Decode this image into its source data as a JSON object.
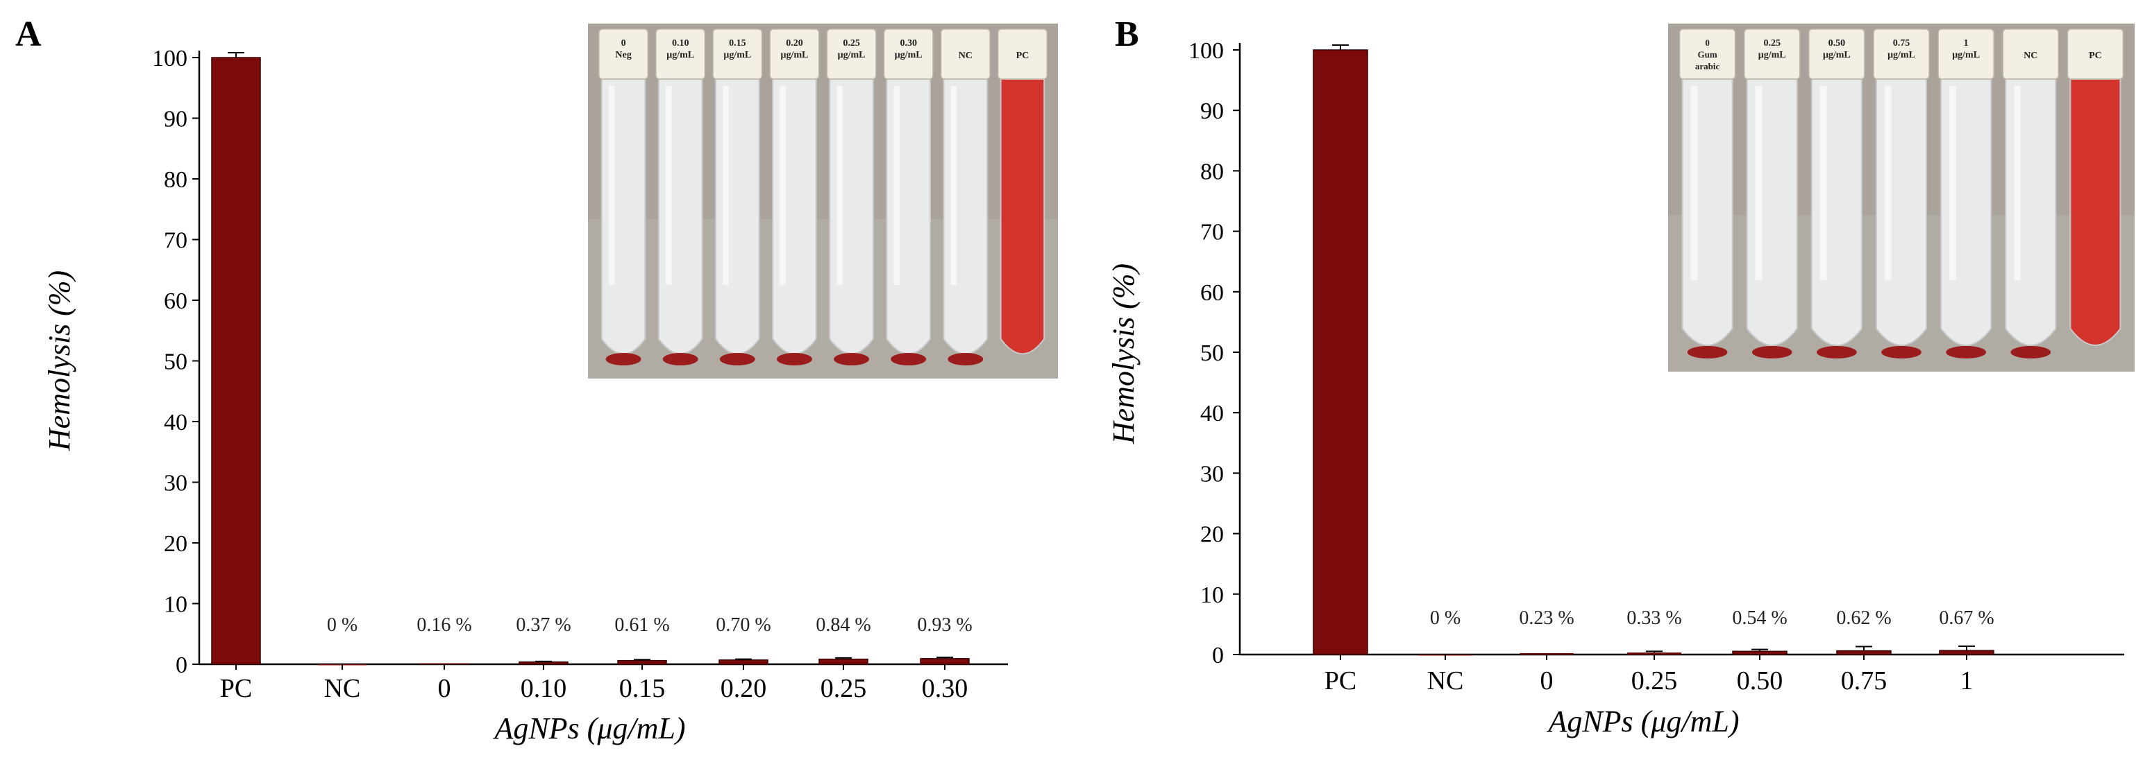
{
  "chart_data": [
    {
      "panel": "A",
      "type": "bar",
      "xlabel": "AgNPs (μg/mL)",
      "ylabel": "Hemolysis (%)",
      "ylim": [
        0,
        100
      ],
      "yticks": [
        0,
        10,
        20,
        30,
        40,
        50,
        60,
        70,
        80,
        90,
        100
      ],
      "categories": [
        "PC",
        "NC",
        "0",
        "0.10",
        "0.15",
        "0.20",
        "0.25",
        "0.30"
      ],
      "values": [
        100,
        0,
        0.16,
        0.37,
        0.61,
        0.7,
        0.84,
        0.93
      ],
      "errors": [
        0.8,
        0,
        0,
        0.1,
        0.15,
        0.15,
        0.2,
        0.2
      ],
      "data_labels": [
        "",
        "0 %",
        "0.16 %",
        "0.37 %",
        "0.61 %",
        "0.70 %",
        "0.84 %",
        "0.93 %"
      ],
      "bar_color": "#7b0a0a",
      "grid": false,
      "inset": {
        "description_free": true,
        "tube_labels": [
          [
            "0",
            "Neg"
          ],
          [
            "0.10",
            "μg/mL"
          ],
          [
            "0.15",
            "μg/mL"
          ],
          [
            "0.20",
            "μg/mL"
          ],
          [
            "0.25",
            "μg/mL"
          ],
          [
            "0.30",
            "μg/mL"
          ],
          [
            "NC"
          ],
          [
            "PC"
          ]
        ],
        "pellet": [
          true,
          true,
          true,
          true,
          true,
          true,
          true,
          false
        ],
        "red_fill": [
          false,
          false,
          false,
          false,
          false,
          false,
          false,
          true
        ]
      }
    },
    {
      "panel": "B",
      "type": "bar",
      "xlabel": "AgNPs (μg/mL)",
      "ylabel": "Hemolysis (%)",
      "ylim": [
        0,
        100
      ],
      "yticks": [
        0,
        10,
        20,
        30,
        40,
        50,
        60,
        70,
        80,
        90,
        100
      ],
      "categories": [
        "PC",
        "NC",
        "0",
        "0.25",
        "0.50",
        "0.75",
        "1"
      ],
      "values": [
        100,
        0,
        0.23,
        0.33,
        0.54,
        0.62,
        0.67
      ],
      "errors": [
        0.8,
        0,
        0,
        0.2,
        0.3,
        0.7,
        0.7
      ],
      "data_labels": [
        "",
        "0 %",
        "0.23 %",
        "0.33 %",
        "0.54 %",
        "0.62 %",
        "0.67 %"
      ],
      "bar_color": "#7b0a0a",
      "grid": false,
      "inset": {
        "tube_labels": [
          [
            "0",
            "Gum",
            "arabic"
          ],
          [
            "0.25",
            "μg/mL"
          ],
          [
            "0.50",
            "μg/mL"
          ],
          [
            "0.75",
            "μg/mL"
          ],
          [
            "1",
            "μg/mL"
          ],
          [
            "NC"
          ],
          [
            "PC"
          ]
        ],
        "pellet": [
          true,
          true,
          true,
          true,
          true,
          true,
          false
        ],
        "red_fill": [
          false,
          false,
          false,
          false,
          false,
          false,
          true
        ]
      }
    }
  ],
  "panels": {
    "a_letter": "A",
    "b_letter": "B"
  }
}
